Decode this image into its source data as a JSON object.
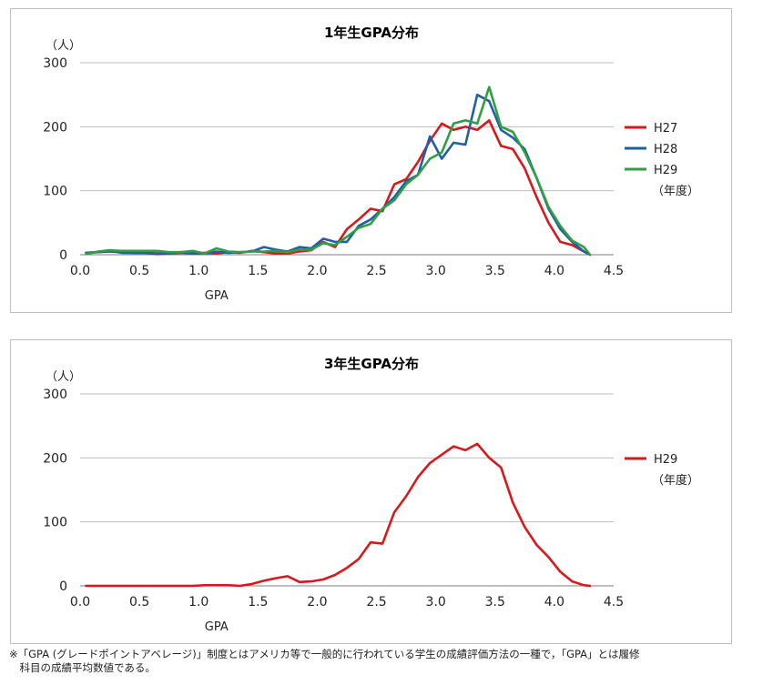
{
  "chart_data": [
    {
      "type": "line",
      "title": "1年生GPA分布",
      "ylabel": "（人）",
      "xlabel": "GPA",
      "xlim": [
        0.0,
        4.5
      ],
      "ylim": [
        0,
        300
      ],
      "x_ticks": [
        "0.0",
        "0.5",
        "1.0",
        "1.5",
        "2.0",
        "2.5",
        "3.0",
        "3.5",
        "4.0",
        "4.5"
      ],
      "y_ticks": [
        "0",
        "100",
        "200",
        "300"
      ],
      "grid": "horizontal",
      "legend_note": "（年度）",
      "x": [
        0.05,
        0.15,
        0.25,
        0.35,
        0.45,
        0.55,
        0.65,
        0.75,
        0.85,
        0.95,
        1.05,
        1.15,
        1.25,
        1.35,
        1.45,
        1.55,
        1.65,
        1.75,
        1.85,
        1.95,
        2.05,
        2.15,
        2.25,
        2.35,
        2.45,
        2.55,
        2.65,
        2.75,
        2.85,
        2.95,
        3.05,
        3.15,
        3.25,
        3.35,
        3.45,
        3.55,
        3.65,
        3.75,
        3.85,
        3.95,
        4.05,
        4.15,
        4.25,
        4.3
      ],
      "series": [
        {
          "name": "H27",
          "color": "#d7191c",
          "values": [
            3,
            4,
            5,
            4,
            3,
            3,
            1,
            2,
            3,
            2,
            3,
            2,
            4,
            3,
            6,
            4,
            2,
            2,
            5,
            7,
            20,
            12,
            40,
            55,
            72,
            68,
            110,
            118,
            145,
            178,
            205,
            195,
            200,
            195,
            210,
            170,
            165,
            135,
            90,
            50,
            20,
            15,
            5,
            0
          ]
        },
        {
          "name": "H28",
          "color": "#1f5fa8",
          "values": [
            3,
            4,
            6,
            3,
            3,
            3,
            2,
            3,
            4,
            2,
            2,
            5,
            3,
            4,
            5,
            12,
            8,
            5,
            12,
            10,
            25,
            20,
            20,
            45,
            55,
            72,
            90,
            115,
            125,
            185,
            150,
            175,
            172,
            250,
            240,
            195,
            183,
            165,
            120,
            72,
            40,
            20,
            5,
            0
          ]
        },
        {
          "name": "H29",
          "color": "#2ea043",
          "values": [
            1,
            5,
            7,
            6,
            6,
            6,
            6,
            4,
            4,
            6,
            2,
            10,
            5,
            4,
            5,
            5,
            6,
            4,
            8,
            8,
            18,
            15,
            28,
            42,
            48,
            72,
            85,
            110,
            125,
            150,
            160,
            205,
            210,
            205,
            262,
            200,
            192,
            160,
            120,
            75,
            45,
            22,
            12,
            0
          ]
        }
      ]
    },
    {
      "type": "line",
      "title": "3年生GPA分布",
      "ylabel": "（人）",
      "xlabel": "GPA",
      "xlim": [
        0.0,
        4.5
      ],
      "ylim": [
        0,
        300
      ],
      "x_ticks": [
        "0.0",
        "0.5",
        "1.0",
        "1.5",
        "2.0",
        "2.5",
        "3.0",
        "3.5",
        "4.0",
        "4.5"
      ],
      "y_ticks": [
        "0",
        "100",
        "200",
        "300"
      ],
      "grid": "horizontal",
      "legend_note": "（年度）",
      "x": [
        0.05,
        0.15,
        0.25,
        0.35,
        0.45,
        0.55,
        0.65,
        0.75,
        0.85,
        0.95,
        1.05,
        1.15,
        1.25,
        1.35,
        1.45,
        1.55,
        1.65,
        1.75,
        1.85,
        1.95,
        2.05,
        2.15,
        2.25,
        2.35,
        2.45,
        2.55,
        2.65,
        2.75,
        2.85,
        2.95,
        3.05,
        3.15,
        3.25,
        3.35,
        3.45,
        3.55,
        3.65,
        3.75,
        3.85,
        3.95,
        4.05,
        4.15,
        4.25,
        4.3
      ],
      "series": [
        {
          "name": "H29",
          "color": "#d7191c",
          "values": [
            0,
            0,
            0,
            0,
            0,
            0,
            0,
            0,
            0,
            0,
            1,
            1,
            1,
            0,
            3,
            8,
            12,
            15,
            6,
            7,
            10,
            17,
            28,
            42,
            68,
            66,
            115,
            140,
            170,
            192,
            205,
            218,
            212,
            222,
            200,
            185,
            130,
            92,
            64,
            45,
            22,
            7,
            1,
            0
          ]
        }
      ]
    }
  ],
  "footnote": {
    "line1": "※「GPA (グレードポイントアベレージ)」制度とはアメリカ等で一般的に行われている学生の成績評価方法の一種で，「GPA」とは履修",
    "line2": "　科目の成績平均数値である。"
  }
}
